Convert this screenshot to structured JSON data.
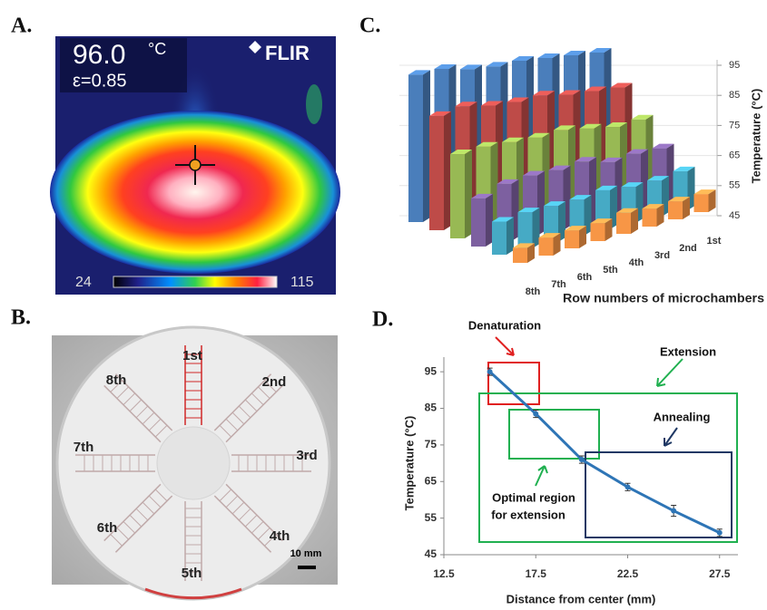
{
  "panels": {
    "a": {
      "label": "A.",
      "temperature": "96.0",
      "unit": "°C",
      "brand": "FLIR",
      "emissivity": "ε=0.85",
      "scale_min": "24",
      "scale_max": "115"
    },
    "b": {
      "label": "B.",
      "rows": [
        "1st",
        "2nd",
        "3rd",
        "4th",
        "5th",
        "6th",
        "7th",
        "8th"
      ],
      "scale_bar": "10 mm"
    },
    "c": {
      "label": "C."
    },
    "d": {
      "label": "D."
    }
  },
  "chart_data": [
    {
      "type": "bar3d",
      "categories": [
        "1st",
        "2nd",
        "3rd",
        "4th",
        "5th",
        "6th",
        "7th",
        "8th"
      ],
      "series": [
        {
          "color": "#4a7ebb",
          "values": [
            95,
            95,
            95,
            95,
            94,
            94,
            95,
            94
          ]
        },
        {
          "color": "#be4b48",
          "values": [
            84,
            84,
            84,
            85,
            84,
            84,
            85,
            83
          ]
        },
        {
          "color": "#98b954",
          "values": [
            74,
            73,
            74,
            75,
            74,
            74,
            74,
            73
          ]
        },
        {
          "color": "#7d60a0",
          "values": [
            65,
            65,
            64,
            66,
            65,
            65,
            64,
            61
          ]
        },
        {
          "color": "#46aac5",
          "values": [
            58,
            57,
            57,
            58,
            57,
            57,
            57,
            56
          ]
        },
        {
          "color": "#f79646",
          "values": [
            51,
            51,
            51,
            52,
            51,
            51,
            51,
            50
          ]
        }
      ],
      "ylim": [
        45,
        95
      ],
      "yticks": [
        45,
        55,
        65,
        75,
        85,
        95
      ],
      "grid": true,
      "ylabel": "Temperature (°C)",
      "xlabel": "Row numbers of microchambers"
    },
    {
      "type": "line",
      "x": [
        15,
        17.5,
        20,
        22.5,
        25,
        27.5
      ],
      "series": [
        {
          "color": "#2e75b6",
          "values": [
            95,
            83.5,
            71,
            63.5,
            57,
            51
          ],
          "errors": [
            1,
            1,
            1,
            1,
            1.5,
            1
          ]
        }
      ],
      "xlim": [
        12.5,
        28.5
      ],
      "ylim": [
        45,
        99
      ],
      "xticks": [
        12.5,
        17.5,
        22.5,
        27.5
      ],
      "yticks": [
        45,
        55,
        65,
        75,
        85,
        95
      ],
      "grid": false,
      "xlabel": "Distance from center (mm)",
      "ylabel": "Temperature (°C)",
      "annotations": [
        "Denaturation",
        "Extension",
        "Annealing",
        "Optimal region",
        "for extension"
      ]
    }
  ]
}
